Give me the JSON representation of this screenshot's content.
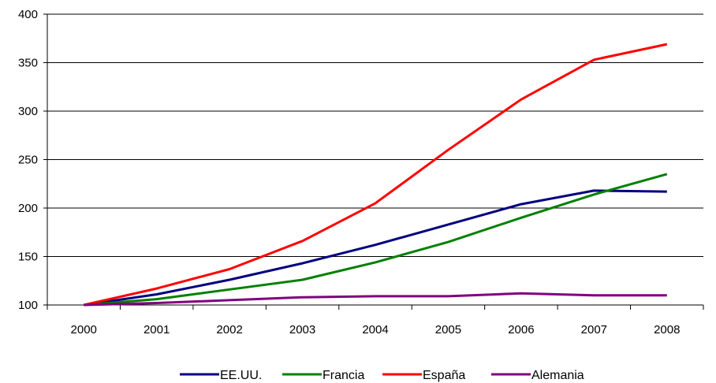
{
  "chart_data": {
    "type": "line",
    "categories": [
      "2000",
      "2001",
      "2002",
      "2003",
      "2004",
      "2005",
      "2006",
      "2007",
      "2008"
    ],
    "ylim": [
      100,
      400
    ],
    "yticks": [
      100,
      150,
      200,
      250,
      300,
      350,
      400
    ],
    "grid": true,
    "legend_position": "bottom",
    "series": [
      {
        "name": "EE.UU.",
        "color": "#000080",
        "values": [
          100,
          111,
          126,
          143,
          162,
          183,
          204,
          218,
          217
        ]
      },
      {
        "name": "Francia",
        "color": "#008000",
        "values": [
          100,
          106,
          116,
          126,
          144,
          165,
          190,
          214,
          235
        ]
      },
      {
        "name": "España",
        "color": "#ff0000",
        "values": [
          100,
          117,
          137,
          166,
          205,
          260,
          312,
          353,
          369
        ]
      },
      {
        "name": "Alemania",
        "color": "#800080",
        "values": [
          100,
          102,
          105,
          108,
          109,
          109,
          112,
          110,
          110
        ]
      }
    ]
  }
}
